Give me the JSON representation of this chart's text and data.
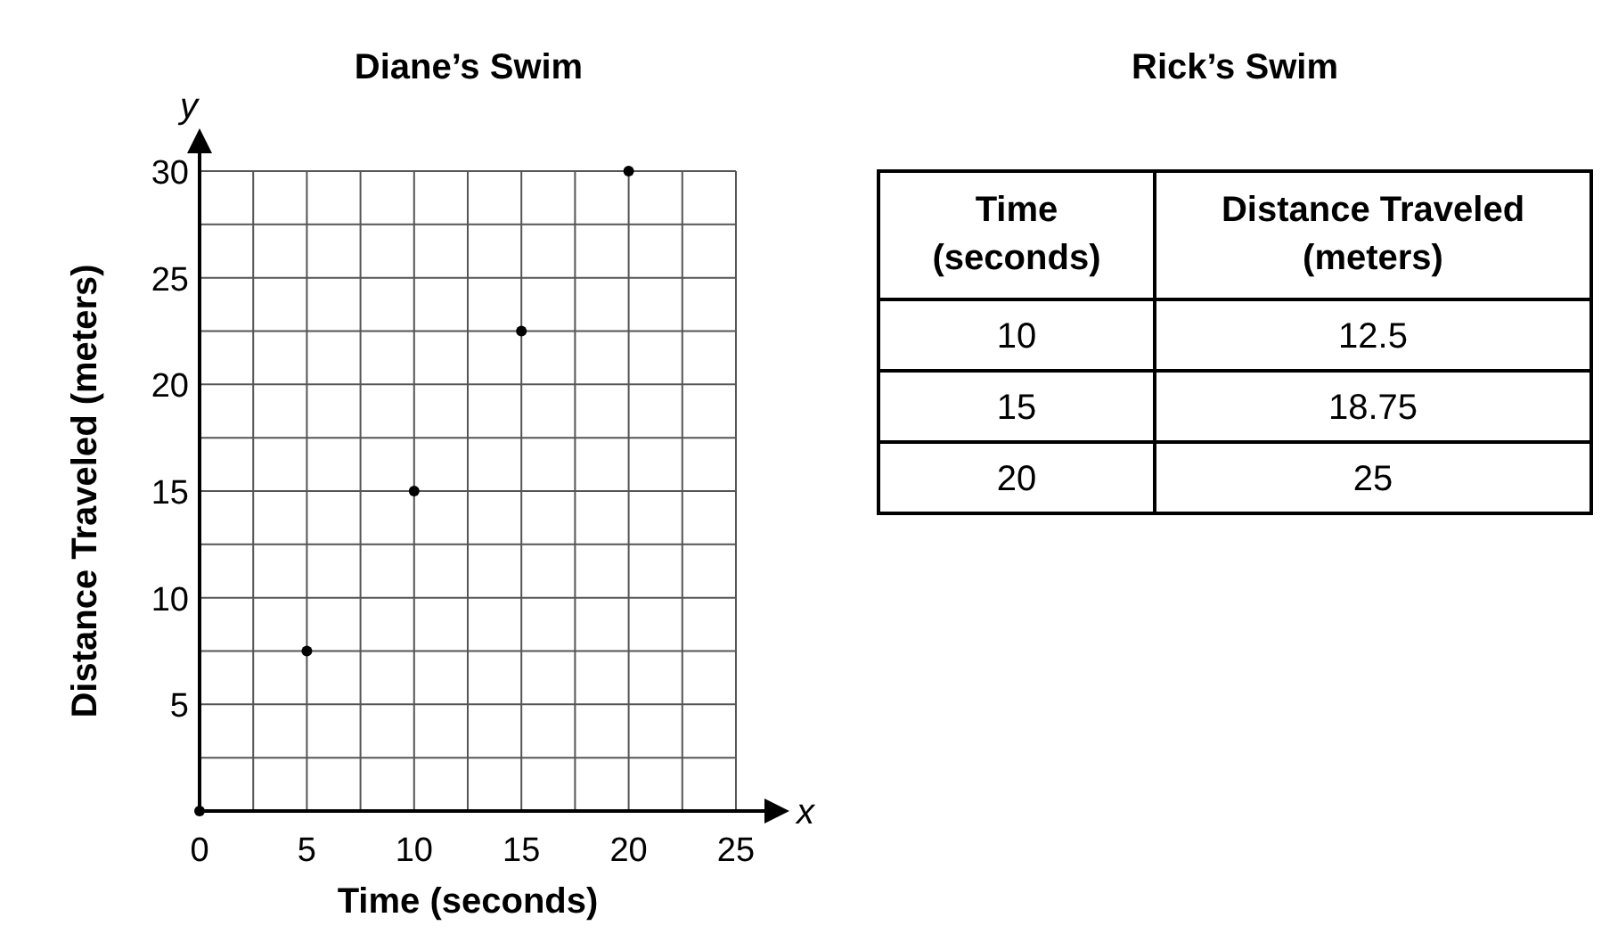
{
  "chart_data": [
    {
      "type": "scatter",
      "title": "Diane’s Swim",
      "xlabel": "Time (seconds)",
      "ylabel": "Distance Traveled (meters)",
      "annotations": [
        "x",
        "y"
      ],
      "x": [
        0,
        5,
        10,
        15,
        20
      ],
      "series": [
        {
          "color": "#000000",
          "values": [
            0,
            7.5,
            15,
            22.5,
            30
          ]
        }
      ],
      "xlim": [
        0,
        25
      ],
      "ylim": [
        0,
        30
      ],
      "xticks": [
        0,
        {
          "value": 2.5,
          "label": null
        },
        5,
        {
          "value": 7.5,
          "label": null
        },
        10,
        {
          "value": 12.5,
          "label": null
        },
        15,
        {
          "value": 17.5,
          "label": null
        },
        20,
        {
          "value": 22.5,
          "label": null
        },
        25
      ],
      "yticks": [
        {
          "value": 2.5,
          "label": null
        },
        5,
        {
          "value": 7.5,
          "label": null
        },
        10,
        {
          "value": 12.5,
          "label": null
        },
        15,
        {
          "value": 17.5,
          "label": null
        },
        20,
        {
          "value": 22.5,
          "label": null
        },
        25,
        {
          "value": 27.5,
          "label": null
        },
        30
      ],
      "grid": true,
      "marker": "circle"
    },
    {
      "type": "other",
      "title": "Rick’s Swim",
      "xlabel": "Time (seconds)",
      "ylabel": "Distance Traveled (meters)",
      "categories": [
        "10",
        "15",
        "20"
      ],
      "values": [
        12.5,
        18.75,
        25
      ],
      "data_labels": true
    }
  ]
}
